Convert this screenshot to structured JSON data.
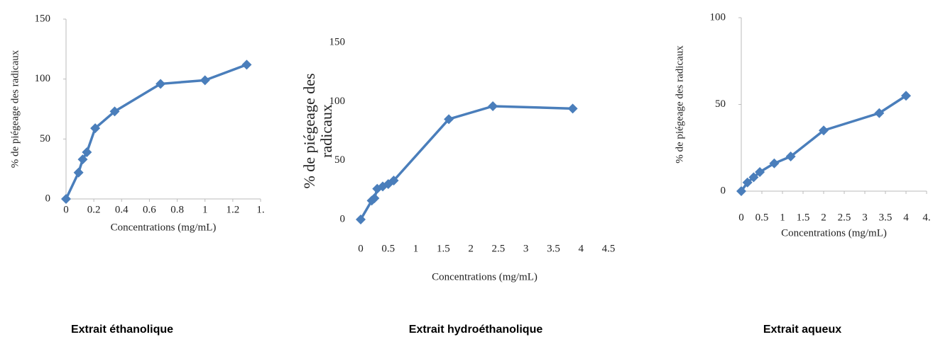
{
  "chart_data": [
    {
      "type": "line",
      "caption": "Extrait éthanolique",
      "xlabel": "Concentrations (mg/mL)",
      "ylabel": [
        "% de piégeage des radicaux"
      ],
      "x": [
        0,
        0.09,
        0.12,
        0.15,
        0.21,
        0.35,
        0.68,
        1.0,
        1.3
      ],
      "series": [
        {
          "color": "#4a7ebb",
          "values": [
            0,
            22,
            33,
            39,
            59,
            73,
            96,
            99,
            112
          ]
        }
      ],
      "xlim": [
        0,
        1.4
      ],
      "xticks": [
        0,
        0.2,
        0.4,
        0.6,
        0.8,
        1,
        1.2,
        {
          "value": 1.4,
          "label": "1."
        }
      ],
      "ylim": [
        0,
        150
      ],
      "yticks": [
        0,
        50,
        100,
        150
      ],
      "axes": true
    },
    {
      "type": "line",
      "caption": "Extrait hydroéthanolique",
      "xlabel": "Concentrations (mg/mL)",
      "ylabel": [
        "% de piégeage des",
        "radicaux"
      ],
      "x": [
        0,
        0.2,
        0.25,
        0.3,
        0.4,
        0.5,
        0.6,
        1.6,
        2.4,
        3.85
      ],
      "series": [
        {
          "color": "#4a7ebb",
          "values": [
            0,
            16,
            18,
            26,
            28,
            30,
            33,
            85,
            96,
            94
          ]
        }
      ],
      "xlim": [
        0,
        4.5
      ],
      "xticks": [
        0,
        0.5,
        1,
        1.5,
        2,
        2.5,
        3,
        3.5,
        4,
        4.5
      ],
      "ylim": [
        0,
        150
      ],
      "yticks": [
        0,
        50,
        100,
        150
      ],
      "axes": false
    },
    {
      "type": "line",
      "caption": "Extrait aqueux",
      "xlabel": "Concentrations (mg/mL)",
      "ylabel": [
        "% de piégeage des radicaux"
      ],
      "x": [
        0,
        0.15,
        0.3,
        0.45,
        0.8,
        1.2,
        2,
        3.35,
        4
      ],
      "series": [
        {
          "color": "#4a7ebb",
          "values": [
            0,
            5,
            8,
            11,
            16,
            20,
            35,
            45,
            55
          ]
        }
      ],
      "xlim": [
        0,
        4.5
      ],
      "xticks": [
        0,
        0.5,
        1,
        1.5,
        2,
        2.5,
        3,
        3.5,
        4,
        {
          "value": 4.5,
          "label": "4."
        }
      ],
      "ylim": [
        0,
        100
      ],
      "yticks": [
        0,
        50,
        100
      ],
      "axes": true
    }
  ]
}
